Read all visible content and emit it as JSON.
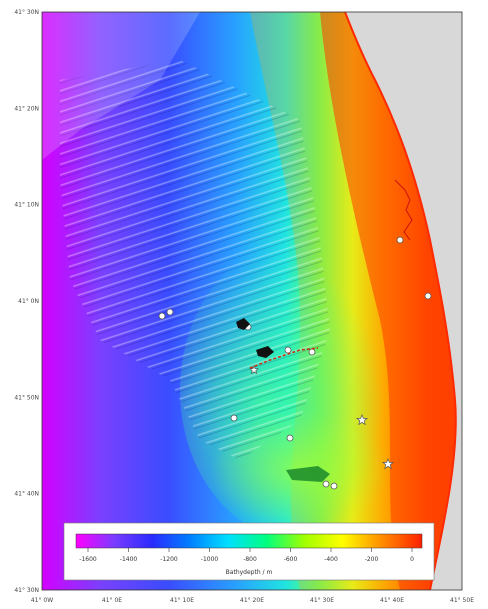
{
  "map": {
    "lat_labels": [
      "41° 30N",
      "41° 20N",
      "41° 10N",
      "41° 0N",
      "41° 50N",
      "41° 40N",
      "41° 30N"
    ],
    "lon_labels": [
      "41° 0W",
      "41° 0E",
      "41° 10E",
      "41° 20E",
      "41° 30E",
      "41° 40E",
      "41° 50E"
    ],
    "land_color": "#d8d8d8",
    "colorbar": {
      "ticks": [
        "-1600",
        "-1400",
        "-1200",
        "-1000",
        "-800",
        "-600",
        "-400",
        "-200",
        "0"
      ],
      "label": "Bathydepth / m",
      "colors": [
        "#ff00ff",
        "#7a3cff",
        "#2a2aff",
        "#0080ff",
        "#00e0ff",
        "#00ff80",
        "#a0ff00",
        "#ffff00",
        "#ff9000",
        "#ff2000"
      ]
    },
    "markers": {
      "circles": 11,
      "stars": 3,
      "ships": 2
    }
  }
}
